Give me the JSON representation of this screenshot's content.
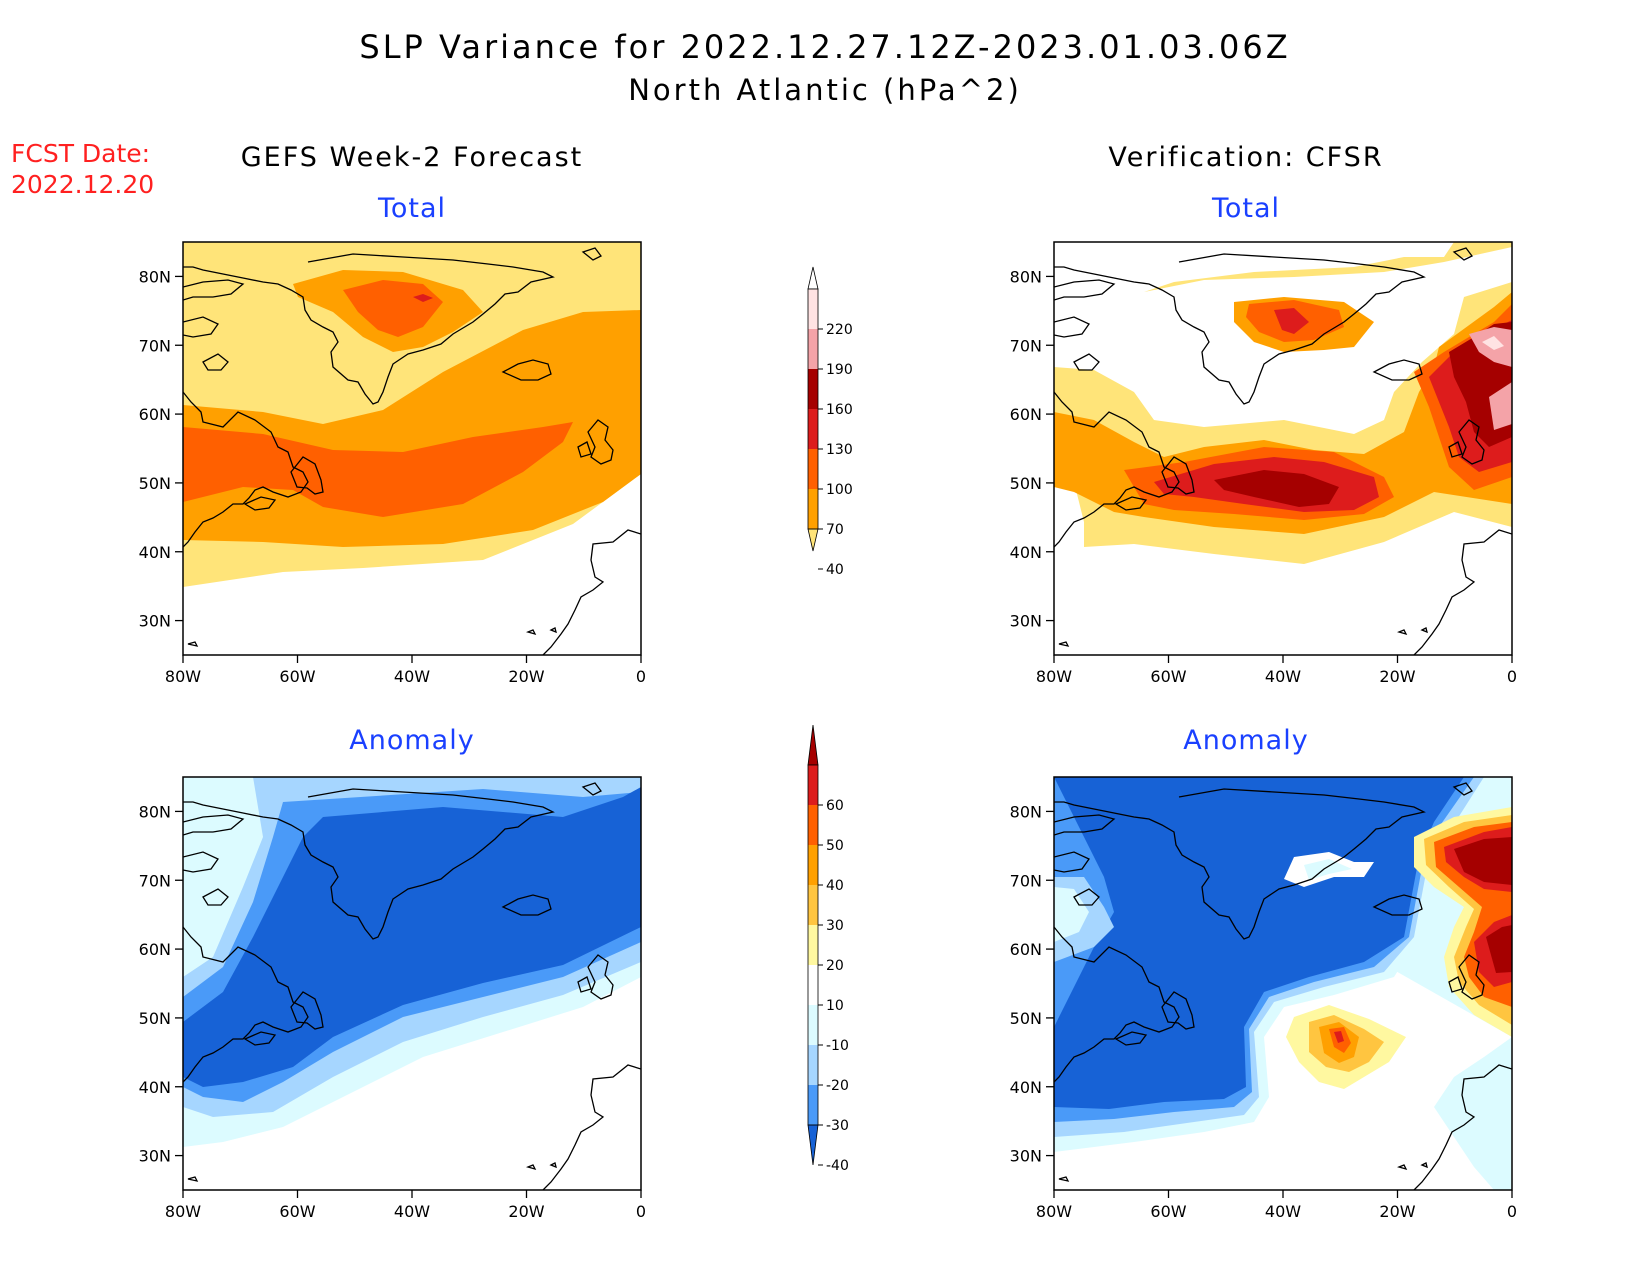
{
  "header": {
    "title": "SLP Variance for 2022.12.27.12Z-2023.01.03.06Z",
    "subtitle": "North Atlantic (hPa^2)"
  },
  "fcst": {
    "label": "FCST Date:",
    "date": "2022.12.20"
  },
  "columns": {
    "left": "GEFS Week-2 Forecast",
    "right": "Verification: CFSR"
  },
  "panels": {
    "tl": "Total",
    "tr": "Total",
    "bl": "Anomaly",
    "br": "Anomaly"
  },
  "axes": {
    "lat_ticks": [
      "80N",
      "70N",
      "60N",
      "50N",
      "40N",
      "30N"
    ],
    "lon_ticks": [
      "80W",
      "60W",
      "40W",
      "20W",
      "0"
    ]
  },
  "total_colorbar": {
    "labels": [
      "220",
      "190",
      "160",
      "130",
      "100",
      "70",
      "40"
    ],
    "colors": [
      "#ffffff",
      "#ffe3e3",
      "#f4a3a8",
      "#a50000",
      "#dd1c1c",
      "#ff6000",
      "#ffa000",
      "#ffe479"
    ]
  },
  "anomaly_colorbar": {
    "labels": [
      "60",
      "50",
      "40",
      "30",
      "20",
      "10",
      "-10",
      "-20",
      "-30",
      "-40"
    ],
    "colors": [
      "#a50000",
      "#dd1c1c",
      "#ff6000",
      "#ffa000",
      "#ffc540",
      "#fff8a0",
      "#ffffff",
      "#dcfbff",
      "#a6d6ff",
      "#4a9af8",
      "#1762d6"
    ]
  }
}
